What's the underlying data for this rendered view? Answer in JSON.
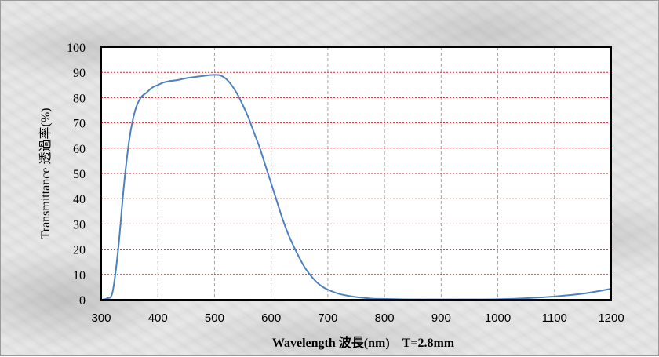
{
  "chart_data": {
    "type": "line",
    "xlabel": "Wavelength 波長(nm)　T=2.8mm",
    "ylabel": "Transmittance 透過率(%)",
    "xlim": [
      300,
      1200
    ],
    "ylim": [
      0,
      100
    ],
    "x_ticks": [
      "300",
      "400",
      "500",
      "600",
      "700",
      "800",
      "900",
      "1000",
      "1100",
      "1200"
    ],
    "y_ticks": [
      "0",
      "10",
      "20",
      "30",
      "40",
      "50",
      "60",
      "70",
      "80",
      "90",
      "100"
    ],
    "grid": {
      "vertical": "gray dashed",
      "horizontal": "red dotted"
    },
    "series": [
      {
        "color": "#4f81bd",
        "x": [
          300,
          310,
          320,
          330,
          340,
          350,
          360,
          370,
          380,
          390,
          400,
          410,
          420,
          430,
          440,
          450,
          460,
          470,
          480,
          490,
          500,
          510,
          520,
          530,
          540,
          550,
          560,
          570,
          580,
          590,
          600,
          610,
          620,
          630,
          640,
          650,
          660,
          670,
          680,
          690,
          700,
          720,
          740,
          760,
          780,
          800,
          850,
          900,
          950,
          1000,
          1050,
          1100,
          1150,
          1200
        ],
        "y": [
          0,
          0.5,
          3,
          20,
          45,
          64,
          75,
          80,
          82,
          84,
          85,
          86,
          86.5,
          86.8,
          87.2,
          87.7,
          88,
          88.3,
          88.6,
          88.9,
          89,
          88.8,
          87.5,
          85,
          81.5,
          77,
          72,
          66,
          60,
          53,
          46,
          39,
          32,
          26,
          21,
          16.5,
          12.5,
          9.5,
          7,
          5.2,
          4,
          2.3,
          1.4,
          0.8,
          0.4,
          0.3,
          0.1,
          0.1,
          0.1,
          0.2,
          0.6,
          1.3,
          2.4,
          4.3
        ]
      }
    ]
  }
}
